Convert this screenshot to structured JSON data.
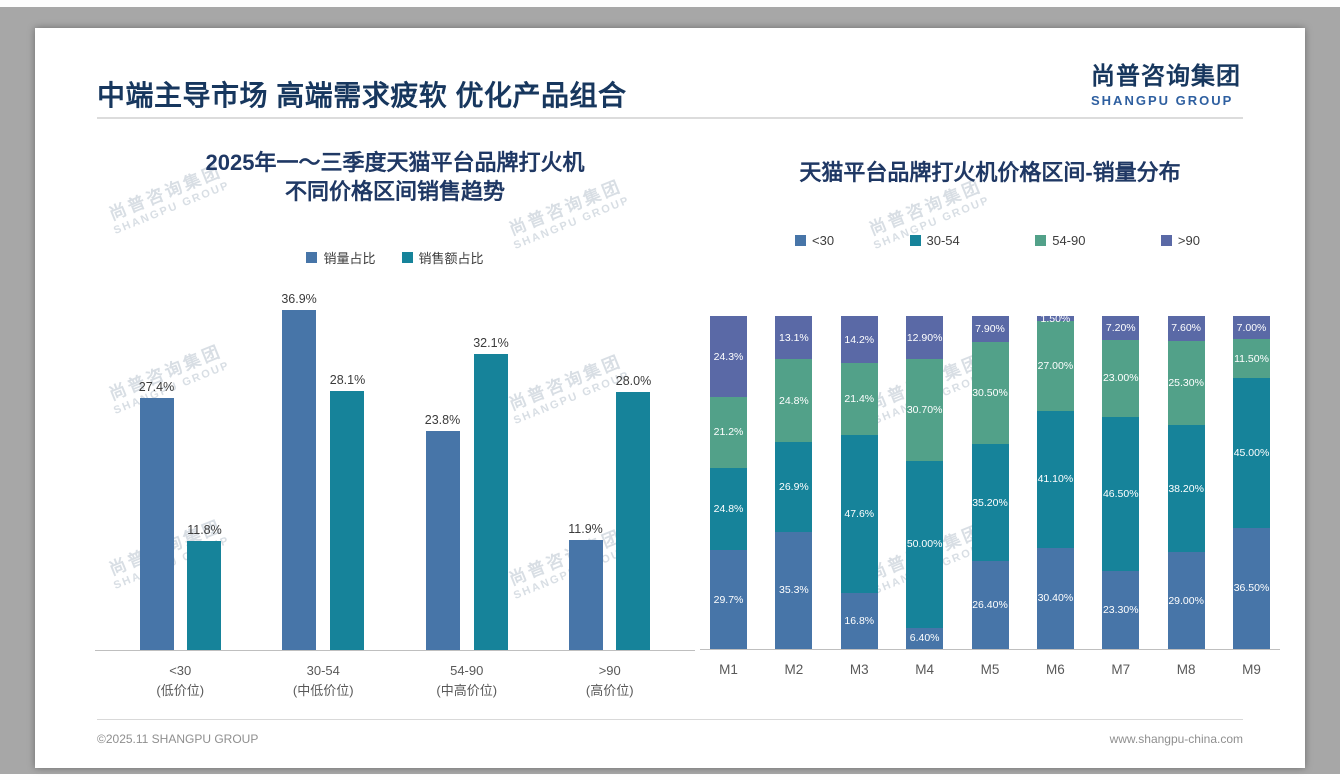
{
  "page": {
    "header": {
      "title": "中端主导市场 高端需求疲软 优化产品组合"
    },
    "logo": {
      "cn": "尚普咨询集团",
      "en": "SHANGPU GROUP"
    },
    "watermark": {
      "cn": "尚普咨询集团",
      "en": "SHANGPU GROUP"
    },
    "footer": {
      "left": "©2025.11 SHANGPU GROUP",
      "right": "www.shangpu-china.com"
    }
  },
  "chart_data": [
    {
      "type": "bar",
      "stacked": false,
      "title": "2025年一～三季度天猫平台品牌打火机 不同价格区间销售趋势",
      "title_lines": [
        "2025年一～三季度天猫平台品牌打火机",
        "不同价格区间销售趋势"
      ],
      "categories": [
        "<30",
        "30-54",
        "54-90",
        ">90"
      ],
      "category_sublabels": [
        "(低价位)",
        "(中低价位)",
        "(中高价位)",
        "(高价位)"
      ],
      "series": [
        {
          "name": "销量占比",
          "color": "#4775A8",
          "values": [
            27.4,
            36.9,
            23.8,
            11.9
          ],
          "labels": [
            "27.4%",
            "36.9%",
            "23.8%",
            "11.9%"
          ]
        },
        {
          "name": "销售额占比",
          "color": "#16839A",
          "values": [
            11.8,
            28.1,
            32.1,
            28.0
          ],
          "labels": [
            "11.8%",
            "28.1%",
            "32.1%",
            "28.0%"
          ]
        }
      ],
      "unit": "%",
      "xlabel": "",
      "ylabel": "",
      "ylim": [
        0,
        38
      ],
      "grid": false,
      "legend_position": "top"
    },
    {
      "type": "bar",
      "stacked": true,
      "title": "天猫平台品牌打火机价格区间-销量分布",
      "categories": [
        "M1",
        "M2",
        "M3",
        "M4",
        "M5",
        "M6",
        "M7",
        "M8",
        "M9"
      ],
      "series": [
        {
          "name": "<30",
          "color": "#4775A8",
          "values": [
            29.7,
            35.3,
            16.8,
            6.4,
            26.4,
            30.4,
            23.3,
            29.0,
            36.5
          ],
          "labels": [
            "29.7%",
            "35.3%",
            "16.8%",
            "6.40%",
            "26.40%",
            "30.40%",
            "23.30%",
            "29.00%",
            "36.50%"
          ]
        },
        {
          "name": "30-54",
          "color": "#16839A",
          "values": [
            24.8,
            26.9,
            47.6,
            50.0,
            35.2,
            41.1,
            46.5,
            38.2,
            45.0
          ],
          "labels": [
            "24.8%",
            "26.9%",
            "47.6%",
            "50.00%",
            "35.20%",
            "41.10%",
            "46.50%",
            "38.20%",
            "45.00%"
          ]
        },
        {
          "name": "54-90",
          "color": "#52A189",
          "values": [
            21.2,
            24.8,
            21.4,
            30.7,
            30.5,
            27.0,
            23.0,
            25.3,
            11.5
          ],
          "labels": [
            "21.2%",
            "24.8%",
            "21.4%",
            "30.70%",
            "30.50%",
            "27.00%",
            "23.00%",
            "25.30%",
            "11.50%"
          ]
        },
        {
          "name": ">90",
          "color": "#5A69A6",
          "values": [
            24.3,
            13.1,
            14.2,
            12.9,
            7.9,
            1.5,
            7.2,
            7.6,
            7.0
          ],
          "labels": [
            "24.3%",
            "13.1%",
            "14.2%",
            "12.90%",
            "7.90%",
            "1.50%",
            "7.20%",
            "7.60%",
            "7.00%"
          ]
        }
      ],
      "unit": "%",
      "xlabel": "",
      "ylabel": "",
      "ylim": [
        0,
        100
      ],
      "grid": false,
      "legend_position": "top"
    }
  ]
}
